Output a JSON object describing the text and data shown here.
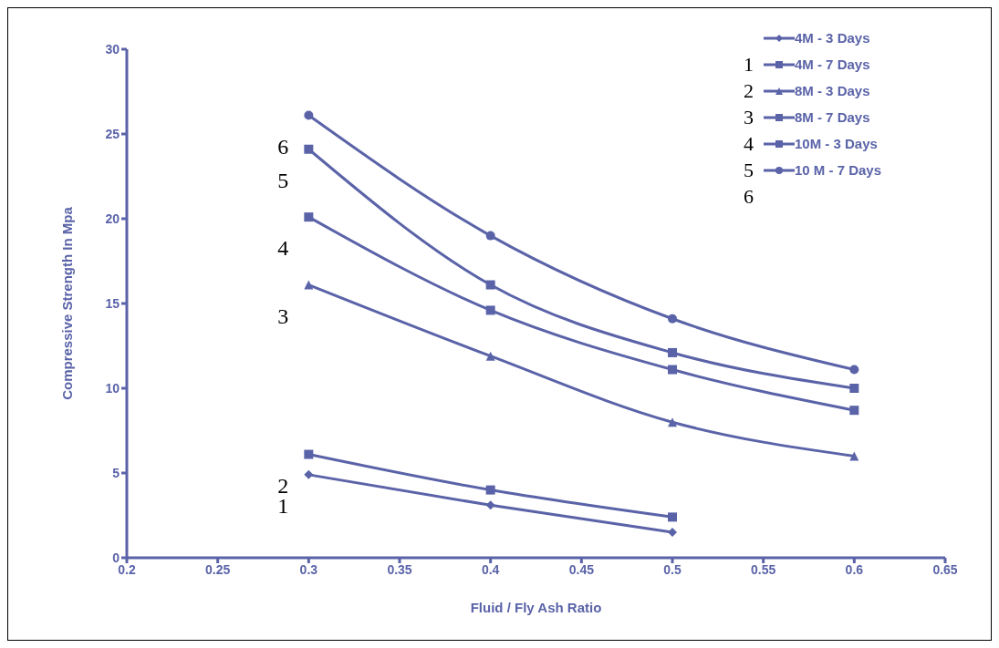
{
  "chart_data": {
    "type": "line",
    "xlabel": "Fluid / Fly Ash Ratio",
    "ylabel": "Compressive Strength In Mpa",
    "xlim": [
      0.2,
      0.65
    ],
    "xticks": [
      0.2,
      0.25,
      0.3,
      0.35,
      0.4,
      0.45,
      0.5,
      0.55,
      0.6,
      0.65
    ],
    "ylim": [
      0,
      30
    ],
    "yticks": [
      0,
      5,
      10,
      15,
      20,
      25,
      30
    ],
    "grid": false,
    "legend": "top right",
    "line_style": "solid",
    "series": [
      {
        "name": "4M - 3 Days",
        "color": "#5a63a8",
        "marker": "diamond",
        "x": [
          0.3,
          0.4,
          0.5
        ],
        "values": [
          4.9,
          3.1,
          1.5
        ]
      },
      {
        "name": "4M - 7 Days",
        "color": "#5a63a8",
        "marker": "square",
        "x": [
          0.3,
          0.4,
          0.5
        ],
        "values": [
          6.1,
          4.0,
          2.4
        ]
      },
      {
        "name": "8M - 3 Days",
        "color": "#5a63a8",
        "marker": "triangle",
        "x": [
          0.3,
          0.4,
          0.5,
          0.6
        ],
        "values": [
          16.1,
          11.9,
          8.0,
          6.0
        ]
      },
      {
        "name": "8M - 7 Days",
        "color": "#5a63a8",
        "marker": "square",
        "x": [
          0.3,
          0.4,
          0.5,
          0.6
        ],
        "values": [
          20.1,
          14.6,
          11.1,
          8.7
        ]
      },
      {
        "name": "10M - 3 Days",
        "color": "#5a63a8",
        "marker": "square",
        "x": [
          0.3,
          0.4,
          0.5,
          0.6
        ],
        "values": [
          24.1,
          16.1,
          12.1,
          10.0
        ]
      },
      {
        "name": "10 M - 7 Days",
        "color": "#5a63a8",
        "marker": "circle",
        "x": [
          0.3,
          0.4,
          0.5,
          0.6
        ],
        "values": [
          26.1,
          19.0,
          14.1,
          11.1
        ]
      }
    ],
    "annotations": [
      "6",
      "5",
      "4",
      "3",
      "2",
      "1",
      "1",
      "2",
      "3",
      "4",
      "5",
      "6"
    ]
  }
}
